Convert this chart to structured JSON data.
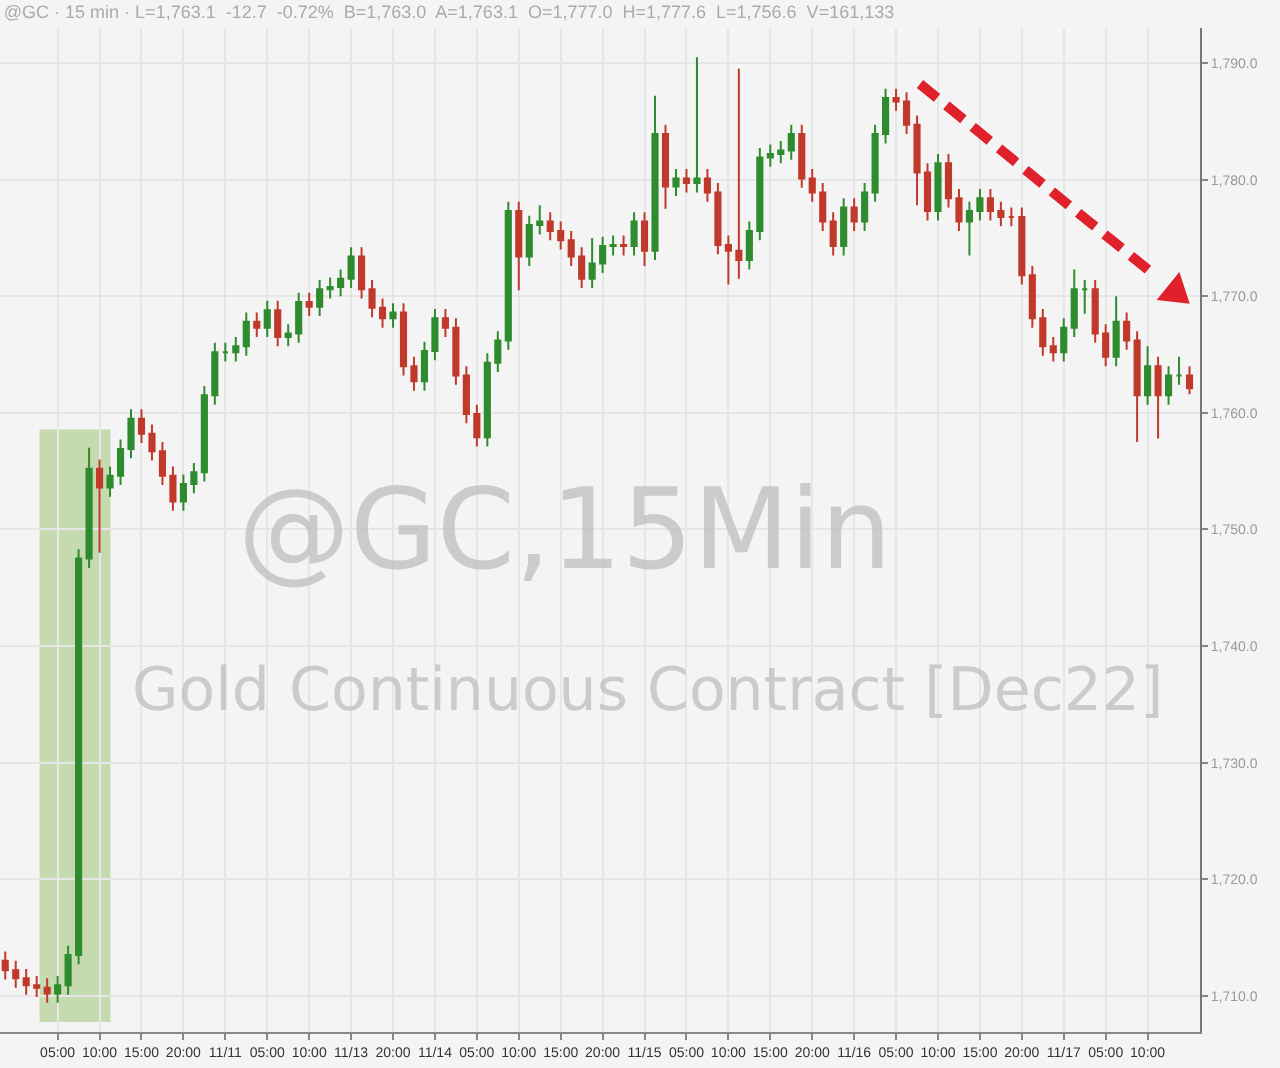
{
  "chart_data": {
    "type": "candlestick",
    "title": "@GC · 15 min · L=1,763.1  -12.7  -0.72%  B=1,763.0  A=1,763.1  O=1,777.0  H=1,777.6  L=1,756.6  V=161,133",
    "annotations": [
      "@GC,15Min",
      "Gold Continuous Contract [Dec22]"
    ],
    "categories": [
      null,
      null,
      null,
      null,
      null,
      "05:00",
      null,
      null,
      null,
      "10:00",
      null,
      null,
      null,
      "15:00",
      null,
      null,
      null,
      "20:00",
      null,
      null,
      null,
      "11/11",
      null,
      null,
      null,
      "05:00",
      null,
      null,
      null,
      "10:00",
      null,
      null,
      null,
      "11/13",
      null,
      null,
      null,
      "20:00",
      null,
      null,
      null,
      "11/14",
      null,
      null,
      null,
      "05:00",
      null,
      null,
      null,
      "10:00",
      null,
      null,
      null,
      "15:00",
      null,
      null,
      null,
      "20:00",
      null,
      null,
      null,
      "11/15",
      null,
      null,
      null,
      "05:00",
      null,
      null,
      null,
      "10:00",
      null,
      null,
      null,
      "15:00",
      null,
      null,
      null,
      "20:00",
      null,
      null,
      null,
      "11/16",
      null,
      null,
      null,
      "05:00",
      null,
      null,
      null,
      "10:00",
      null,
      null,
      null,
      "15:00",
      null,
      null,
      null,
      "20:00",
      null,
      null,
      null,
      "11/17",
      null,
      null,
      null,
      "05:00",
      null,
      null,
      null,
      "10:00",
      null,
      null,
      null,
      null
    ],
    "ohlc": [
      [
        1713.0,
        1713.8,
        1711.4,
        1712.2
      ],
      [
        1712.2,
        1713.0,
        1710.7,
        1711.5
      ],
      [
        1711.5,
        1712.3,
        1710.1,
        1710.9
      ],
      [
        1710.9,
        1711.7,
        1709.9,
        1710.7
      ],
      [
        1710.7,
        1711.5,
        1709.4,
        1710.2
      ],
      [
        1710.2,
        1711.7,
        1709.4,
        1710.9
      ],
      [
        1710.9,
        1714.3,
        1710.1,
        1713.5
      ],
      [
        1713.5,
        1748.3,
        1712.7,
        1747.5
      ],
      [
        1747.5,
        1757.0,
        1746.7,
        1755.2
      ],
      [
        1755.2,
        1756.0,
        1748.0,
        1753.6
      ],
      [
        1753.6,
        1755.4,
        1752.8,
        1754.6
      ],
      [
        1754.6,
        1757.7,
        1753.8,
        1756.9
      ],
      [
        1756.9,
        1760.3,
        1756.1,
        1759.5
      ],
      [
        1759.5,
        1760.3,
        1757.4,
        1758.2
      ],
      [
        1758.2,
        1759.0,
        1755.9,
        1756.7
      ],
      [
        1756.7,
        1757.5,
        1753.8,
        1754.6
      ],
      [
        1754.6,
        1755.4,
        1751.6,
        1752.4
      ],
      [
        1752.4,
        1754.7,
        1751.6,
        1753.9
      ],
      [
        1753.9,
        1755.7,
        1753.1,
        1754.9
      ],
      [
        1754.9,
        1762.3,
        1754.1,
        1761.5
      ],
      [
        1761.5,
        1766.0,
        1760.7,
        1765.2
      ],
      [
        1765.2,
        1766.0,
        1764.4,
        1765.2
      ],
      [
        1765.2,
        1766.5,
        1764.4,
        1765.7
      ],
      [
        1765.7,
        1768.6,
        1764.9,
        1767.8
      ],
      [
        1767.8,
        1768.6,
        1766.5,
        1767.3
      ],
      [
        1767.3,
        1769.6,
        1766.5,
        1768.8
      ],
      [
        1768.8,
        1769.6,
        1765.7,
        1766.5
      ],
      [
        1766.5,
        1767.6,
        1765.7,
        1766.8
      ],
      [
        1766.8,
        1770.3,
        1766.0,
        1769.5
      ],
      [
        1769.5,
        1770.3,
        1768.3,
        1769.1
      ],
      [
        1769.1,
        1771.4,
        1768.3,
        1770.6
      ],
      [
        1770.6,
        1771.6,
        1769.8,
        1770.8
      ],
      [
        1770.8,
        1772.3,
        1770.0,
        1771.5
      ],
      [
        1771.5,
        1774.2,
        1770.7,
        1773.4
      ],
      [
        1773.4,
        1774.2,
        1769.8,
        1770.6
      ],
      [
        1770.6,
        1771.4,
        1768.2,
        1769.0
      ],
      [
        1769.0,
        1769.8,
        1767.3,
        1768.1
      ],
      [
        1768.1,
        1769.4,
        1767.3,
        1768.6
      ],
      [
        1768.6,
        1769.4,
        1763.2,
        1764.0
      ],
      [
        1764.0,
        1764.8,
        1761.9,
        1762.7
      ],
      [
        1762.7,
        1766.1,
        1761.9,
        1765.3
      ],
      [
        1765.3,
        1768.9,
        1764.5,
        1768.1
      ],
      [
        1768.1,
        1768.9,
        1766.5,
        1767.3
      ],
      [
        1767.3,
        1768.1,
        1762.4,
        1763.2
      ],
      [
        1763.2,
        1764.0,
        1759.1,
        1759.9
      ],
      [
        1759.9,
        1760.7,
        1757.1,
        1757.9
      ],
      [
        1757.9,
        1765.1,
        1757.1,
        1764.3
      ],
      [
        1764.3,
        1767.0,
        1763.5,
        1766.2
      ],
      [
        1766.2,
        1778.1,
        1765.4,
        1777.3
      ],
      [
        1777.3,
        1778.1,
        1770.5,
        1773.4
      ],
      [
        1773.4,
        1776.9,
        1772.6,
        1776.1
      ],
      [
        1776.1,
        1777.8,
        1775.3,
        1776.4
      ],
      [
        1776.4,
        1777.2,
        1774.8,
        1775.6
      ],
      [
        1775.6,
        1776.4,
        1774.0,
        1774.8
      ],
      [
        1774.8,
        1775.6,
        1772.6,
        1773.4
      ],
      [
        1773.4,
        1774.2,
        1770.7,
        1771.5
      ],
      [
        1771.5,
        1775.0,
        1770.7,
        1772.8
      ],
      [
        1772.8,
        1775.1,
        1772.0,
        1774.3
      ],
      [
        1774.3,
        1775.2,
        1773.5,
        1774.4
      ],
      [
        1774.4,
        1775.2,
        1773.5,
        1774.3
      ],
      [
        1774.3,
        1777.2,
        1773.5,
        1776.4
      ],
      [
        1776.4,
        1777.2,
        1772.6,
        1773.9
      ],
      [
        1773.9,
        1787.2,
        1773.1,
        1783.9
      ],
      [
        1783.9,
        1784.7,
        1777.5,
        1779.4
      ],
      [
        1779.4,
        1780.9,
        1778.6,
        1780.1
      ],
      [
        1780.1,
        1780.9,
        1778.9,
        1779.7
      ],
      [
        1779.7,
        1790.5,
        1778.9,
        1780.1
      ],
      [
        1780.1,
        1780.9,
        1778.1,
        1778.9
      ],
      [
        1778.9,
        1779.7,
        1773.6,
        1774.4
      ],
      [
        1774.4,
        1775.2,
        1771.0,
        1773.9
      ],
      [
        1773.9,
        1789.5,
        1771.5,
        1773.1
      ],
      [
        1773.1,
        1776.4,
        1772.3,
        1775.6
      ],
      [
        1775.6,
        1782.7,
        1774.8,
        1781.9
      ],
      [
        1781.9,
        1783.0,
        1781.1,
        1782.2
      ],
      [
        1782.2,
        1783.3,
        1781.4,
        1782.5
      ],
      [
        1782.5,
        1784.7,
        1781.7,
        1783.9
      ],
      [
        1783.9,
        1784.7,
        1779.3,
        1780.1
      ],
      [
        1780.1,
        1780.9,
        1778.1,
        1778.9
      ],
      [
        1778.9,
        1779.7,
        1775.6,
        1776.4
      ],
      [
        1776.4,
        1777.2,
        1773.5,
        1774.3
      ],
      [
        1774.3,
        1778.4,
        1773.5,
        1777.6
      ],
      [
        1777.6,
        1778.4,
        1775.6,
        1776.4
      ],
      [
        1776.4,
        1779.7,
        1775.6,
        1778.9
      ],
      [
        1778.9,
        1784.7,
        1778.1,
        1783.9
      ],
      [
        1783.9,
        1787.8,
        1783.1,
        1787.0
      ],
      [
        1787.0,
        1787.8,
        1785.9,
        1786.7
      ],
      [
        1786.7,
        1787.5,
        1783.9,
        1784.7
      ],
      [
        1784.7,
        1785.5,
        1777.8,
        1780.6
      ],
      [
        1780.6,
        1781.4,
        1776.5,
        1777.3
      ],
      [
        1777.3,
        1782.2,
        1776.5,
        1781.4
      ],
      [
        1781.4,
        1782.2,
        1777.6,
        1778.4
      ],
      [
        1778.4,
        1779.2,
        1775.6,
        1776.4
      ],
      [
        1776.4,
        1778.1,
        1773.5,
        1777.3
      ],
      [
        1777.3,
        1779.2,
        1776.5,
        1778.4
      ],
      [
        1778.4,
        1779.2,
        1776.5,
        1777.3
      ],
      [
        1777.3,
        1778.1,
        1776.0,
        1776.8
      ],
      [
        1776.8,
        1777.6,
        1776.0,
        1776.8
      ],
      [
        1776.8,
        1777.6,
        1771.0,
        1771.8
      ],
      [
        1771.8,
        1772.6,
        1767.3,
        1768.1
      ],
      [
        1768.1,
        1768.9,
        1764.9,
        1765.7
      ],
      [
        1765.7,
        1766.5,
        1764.4,
        1765.2
      ],
      [
        1765.2,
        1768.1,
        1764.4,
        1767.3
      ],
      [
        1767.3,
        1772.3,
        1766.5,
        1770.6
      ],
      [
        1770.6,
        1771.4,
        1768.5,
        1770.6
      ],
      [
        1770.6,
        1771.4,
        1766.0,
        1766.8
      ],
      [
        1766.8,
        1767.6,
        1764.0,
        1764.8
      ],
      [
        1764.8,
        1770.0,
        1764.0,
        1767.8
      ],
      [
        1767.8,
        1768.6,
        1765.4,
        1766.2
      ],
      [
        1766.2,
        1767.0,
        1757.5,
        1761.5
      ],
      [
        1761.5,
        1765.7,
        1760.7,
        1764.0
      ],
      [
        1764.0,
        1764.8,
        1757.8,
        1761.5
      ],
      [
        1761.5,
        1764.0,
        1760.7,
        1763.2
      ],
      [
        1763.2,
        1764.8,
        1762.4,
        1763.2
      ],
      [
        1763.2,
        1764.0,
        1761.6,
        1762.1
      ]
    ],
    "ylim": [
      1706.9,
      1793.0
    ],
    "yticks": [
      {
        "value": 1710,
        "label": "1,710.0"
      },
      {
        "value": 1720,
        "label": "1,720.0"
      },
      {
        "value": 1730,
        "label": "1,730.0"
      },
      {
        "value": 1740,
        "label": "1,740.0"
      },
      {
        "value": 1750,
        "label": "1,750.0"
      },
      {
        "value": 1760,
        "label": "1,760.0"
      },
      {
        "value": 1770,
        "label": "1,770.0"
      },
      {
        "value": 1780,
        "label": "1,780.0"
      },
      {
        "value": 1790,
        "label": "1,790.0"
      }
    ],
    "grid": true
  }
}
